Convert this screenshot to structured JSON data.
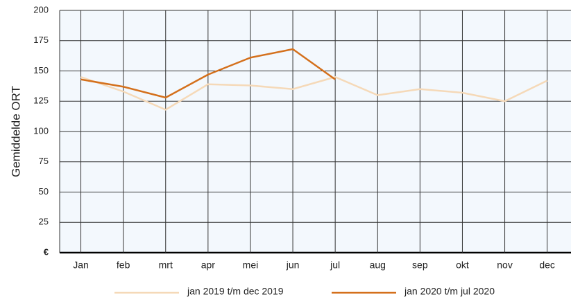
{
  "chart_data": {
    "type": "line",
    "y_label": "Gemiddelde ORT",
    "categories": [
      "Jan",
      "feb",
      "mrt",
      "apr",
      "mei",
      "jun",
      "jul",
      "aug",
      "sep",
      "okt",
      "nov",
      "dec"
    ],
    "series": [
      {
        "name": "jan 2019 t/m dec 2019",
        "color": "#f5d9b8",
        "values": [
          145,
          133,
          118,
          139,
          138,
          135,
          145,
          130,
          135,
          132,
          125,
          142
        ]
      },
      {
        "name": "jan 2020 t/m jul 2020",
        "color": "#d4701c",
        "values": [
          143,
          137,
          128,
          147,
          161,
          168,
          143,
          null,
          null,
          null,
          null,
          null
        ]
      }
    ],
    "ylim": [
      0,
      200
    ],
    "yticks": [
      {
        "value": 0,
        "label": "€"
      },
      25,
      50,
      75,
      100,
      125,
      150,
      175,
      200
    ],
    "grid": true,
    "legend": "bottom"
  }
}
